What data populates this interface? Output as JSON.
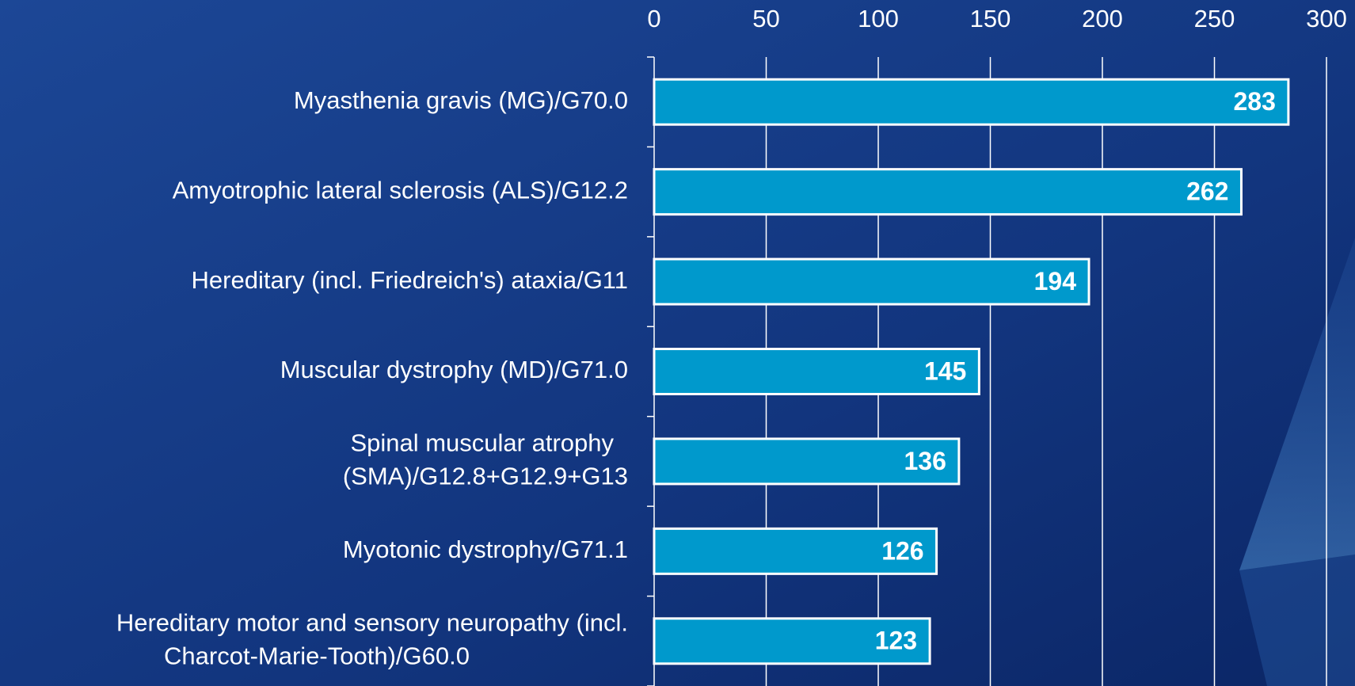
{
  "chart_data": {
    "type": "bar",
    "orientation": "horizontal",
    "categories": [
      [
        "Myasthenia gravis (MG)/G70.0"
      ],
      [
        "Amyotrophic lateral sclerosis (ALS)/G12.2"
      ],
      [
        "Hereditary (incl. Friedreich's) ataxia/G11"
      ],
      [
        "Muscular dystrophy (MD)/G71.0"
      ],
      [
        "Spinal muscular atrophy",
        "(SMA)/G12.8+G12.9+G13"
      ],
      [
        "Myotonic dystrophy/G71.1"
      ],
      [
        "Hereditary motor and sensory neuropathy (incl.",
        "Charcot-Marie-Tooth)/G60.0"
      ]
    ],
    "values": [
      283,
      262,
      194,
      145,
      136,
      126,
      123
    ],
    "color": "#0099cc",
    "xlim": [
      0,
      300
    ],
    "xticks": [
      0,
      50,
      100,
      150,
      200,
      250,
      300
    ],
    "grid": true
  }
}
